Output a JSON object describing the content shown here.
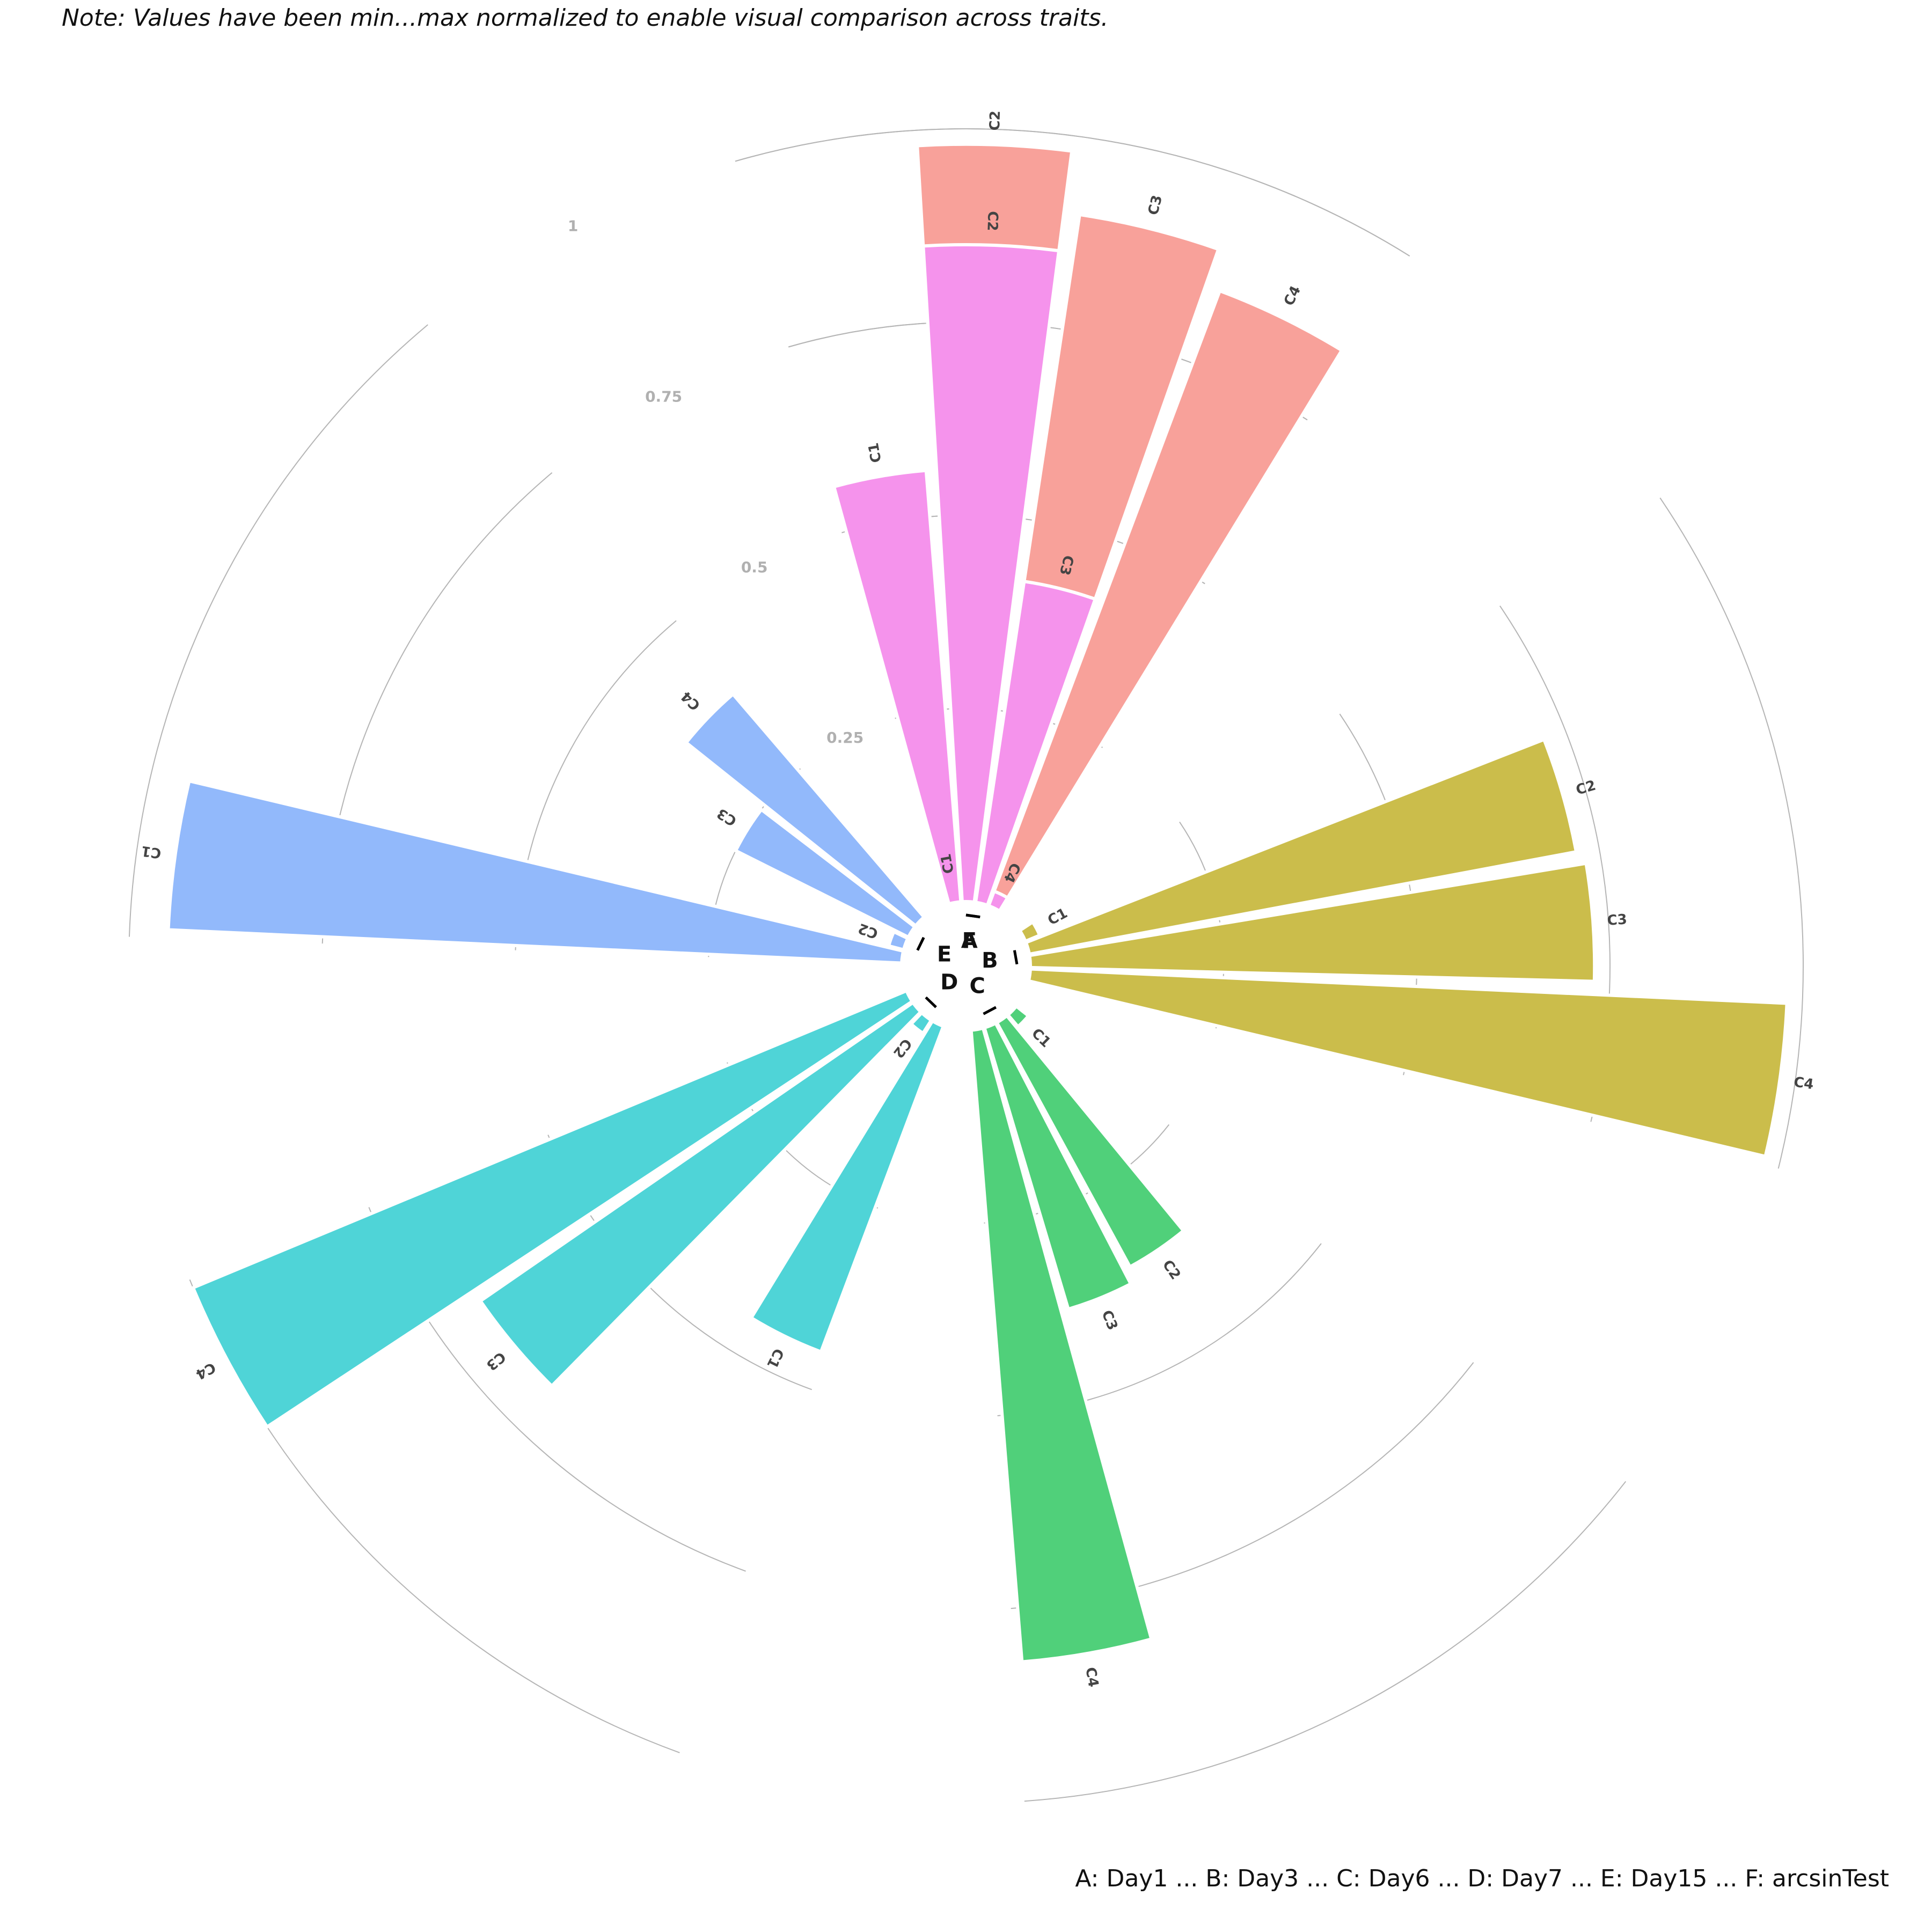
{
  "note": "Note: Values have been min...max normalized to enable visual comparison across traits.",
  "caption": "A: Day1   ...   B: Day3   ...   C: Day6   ...   D: Day7   ...   E: Day15   ...   F: arcsinTest",
  "chart_data": {
    "type": "bar",
    "subtype": "circular-stacked",
    "title": "",
    "rlim": [
      0,
      1
    ],
    "r_ticks": [
      0.25,
      0.5,
      0.75,
      1
    ],
    "r_tick_labels": [
      "0.25",
      "0.5",
      "0.75",
      "1"
    ],
    "grid": true,
    "legend": "none",
    "groups": [
      {
        "label": "A",
        "color": "#f8a19a",
        "bars": [
          {
            "label": "C1",
            "value": 0.02
          },
          {
            "label": "C2",
            "value": 0.98
          },
          {
            "label": "C3",
            "value": 0.9
          },
          {
            "label": "C4",
            "value": 0.85
          }
        ]
      },
      {
        "label": "B",
        "color": "#cbbd4b",
        "bars": [
          {
            "label": "C1",
            "value": 0.0
          },
          {
            "label": "C2",
            "value": 0.72
          },
          {
            "label": "C3",
            "value": 0.73
          },
          {
            "label": "C4",
            "value": 0.98
          }
        ]
      },
      {
        "label": "C",
        "color": "#50d07a",
        "bars": [
          {
            "label": "C1",
            "value": 0.0
          },
          {
            "label": "C2",
            "value": 0.36
          },
          {
            "label": "C3",
            "value": 0.38
          },
          {
            "label": "C4",
            "value": 0.82
          }
        ]
      },
      {
        "label": "D",
        "color": "#4fd4d7",
        "bars": [
          {
            "label": "C1",
            "value": 0.45
          },
          {
            "label": "C2",
            "value": 0.0
          },
          {
            "label": "C3",
            "value": 0.68
          },
          {
            "label": "C4",
            "value": 1.0
          }
        ]
      },
      {
        "label": "E",
        "color": "#92b9fb",
        "bars": [
          {
            "label": "C1",
            "value": 0.95
          },
          {
            "label": "C2",
            "value": 0.0
          },
          {
            "label": "C3",
            "value": 0.25
          },
          {
            "label": "C4",
            "value": 0.38
          }
        ]
      },
      {
        "label": "F",
        "color": "#f593ec",
        "bars": [
          {
            "label": "C1",
            "value": 0.56
          },
          {
            "label": "C2",
            "value": 0.85
          },
          {
            "label": "C3",
            "value": 0.42
          },
          {
            "label": "C4",
            "value": 0.0
          }
        ]
      }
    ]
  }
}
